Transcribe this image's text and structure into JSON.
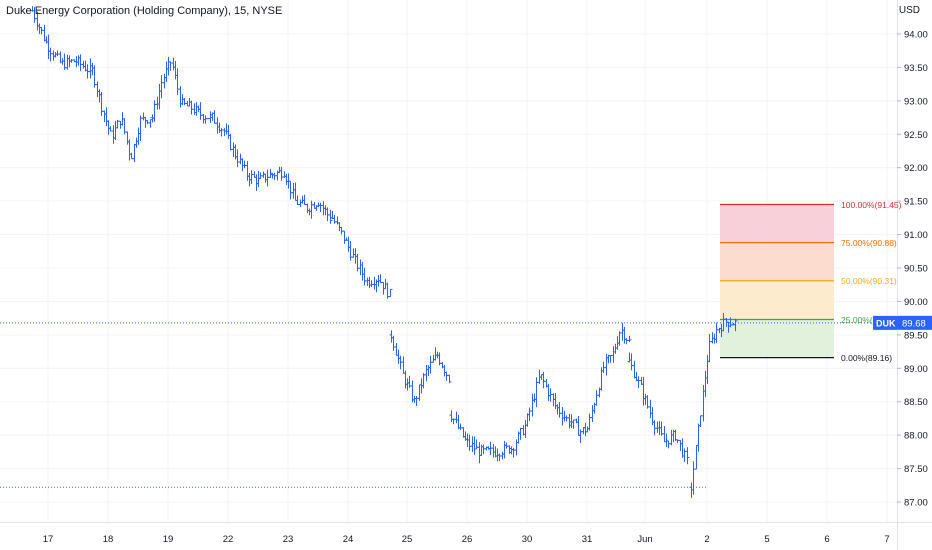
{
  "header": {
    "title": "Duke Energy Corporation (Holding Company), 15, NYSE",
    "currency": "USD"
  },
  "colors": {
    "candle": "#2962ff",
    "grid": "#f0f3fa",
    "axis_text": "#131722",
    "price_line": "#2962ff",
    "low_line": "#5b6b9a"
  },
  "chart_data": {
    "type": "bar",
    "style": "ohlc-bars",
    "symbol": "DUK",
    "last_price": "89.68",
    "last_price_value": 89.68,
    "y_ticks": [
      "94.00",
      "93.50",
      "93.00",
      "92.50",
      "92.00",
      "91.50",
      "91.00",
      "90.50",
      "90.00",
      "89.50",
      "89.00",
      "88.50",
      "88.00",
      "87.50",
      "87.00"
    ],
    "y_tick_values": [
      94.0,
      93.5,
      93.0,
      92.5,
      92.0,
      91.5,
      91.0,
      90.5,
      90.0,
      89.5,
      89.0,
      88.5,
      88.0,
      87.5,
      87.0
    ],
    "x_ticks": [
      "17",
      "18",
      "19",
      "22",
      "23",
      "24",
      "25",
      "26",
      "30",
      "31",
      "Jun",
      "2",
      "5",
      "6",
      "7"
    ],
    "ylim": [
      86.7,
      94.4
    ],
    "low_marker": 87.22,
    "grid": true,
    "sessions": [
      {
        "label": "17",
        "points": [
          94.35,
          93.85,
          93.55,
          93.6,
          93.45
        ]
      },
      {
        "label": "18",
        "points": [
          93.45,
          92.9,
          92.45,
          92.75,
          92.15,
          92.7,
          92.75
        ]
      },
      {
        "label": "19",
        "points": [
          92.75,
          93.3,
          93.6,
          92.95,
          92.9,
          92.8,
          92.75
        ]
      },
      {
        "label": "22",
        "points": [
          92.75,
          92.55,
          92.2,
          91.9,
          91.8,
          91.9
        ]
      },
      {
        "label": "23",
        "points": [
          91.9,
          91.95,
          91.5,
          91.4,
          91.5,
          91.25
        ]
      },
      {
        "label": "24",
        "points": [
          91.25,
          90.95,
          90.6,
          90.3,
          90.35,
          90.1
        ]
      },
      {
        "label": "25",
        "points": [
          89.5,
          88.9,
          88.5,
          88.95,
          89.2,
          88.85
        ]
      },
      {
        "label": "26",
        "points": [
          88.3,
          87.9,
          87.75,
          87.75,
          87.8
        ]
      },
      {
        "label": "30",
        "points": [
          87.8,
          88.15,
          88.9,
          88.45,
          88.2
        ]
      },
      {
        "label": "31",
        "points": [
          88.2,
          88.05,
          88.1,
          88.6,
          89.05,
          89.2,
          89.6,
          89.4
        ]
      },
      {
        "label": "Jun",
        "points": [
          89.1,
          88.7,
          88.25,
          87.9,
          88.0,
          87.6
        ]
      },
      {
        "label": "2",
        "points": [
          87.22,
          88.3,
          89.3,
          89.6,
          89.7,
          89.68
        ]
      }
    ]
  },
  "fib": {
    "levels": [
      {
        "label": "100.00%(91.45)",
        "value": 91.45,
        "color": "#d32f2f",
        "fill": "#f6c8d4"
      },
      {
        "label": "75.00%(90.88)",
        "value": 90.88,
        "color": "#ef6c00",
        "fill": "#fcd6c6"
      },
      {
        "label": "50.00%(90.31)",
        "value": 90.31,
        "color": "#f9a825",
        "fill": "#fde7c5"
      },
      {
        "label": "25.00%(89.73)",
        "value": 89.73,
        "color": "#43a047",
        "fill": "#dcefd5"
      },
      {
        "label": "0.00%(89.16)",
        "value": 89.16,
        "color": "#131722",
        "fill": null
      }
    ]
  }
}
